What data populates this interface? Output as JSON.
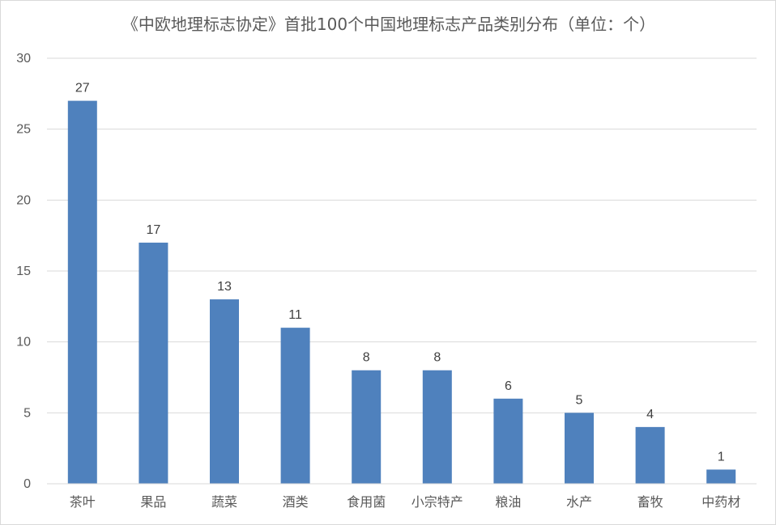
{
  "chart_data": {
    "type": "bar",
    "title": "《中欧地理标志协定》首批100个中国地理标志产品类别分布（单位：个）",
    "xlabel": "",
    "ylabel": "",
    "ylim": [
      0,
      30
    ],
    "yticks": [
      0,
      5,
      10,
      15,
      20,
      25,
      30
    ],
    "grid": true,
    "legend": "none",
    "bar_color": "#4f81bd",
    "categories": [
      "茶叶",
      "果品",
      "蔬菜",
      "酒类",
      "食用菌",
      "小宗特产",
      "粮油",
      "水产",
      "畜牧",
      "中药材"
    ],
    "values": [
      27,
      17,
      13,
      11,
      8,
      8,
      6,
      5,
      4,
      1
    ],
    "data_labels": [
      "27",
      "17",
      "13",
      "11",
      "8",
      "8",
      "6",
      "5",
      "4",
      "1"
    ]
  }
}
